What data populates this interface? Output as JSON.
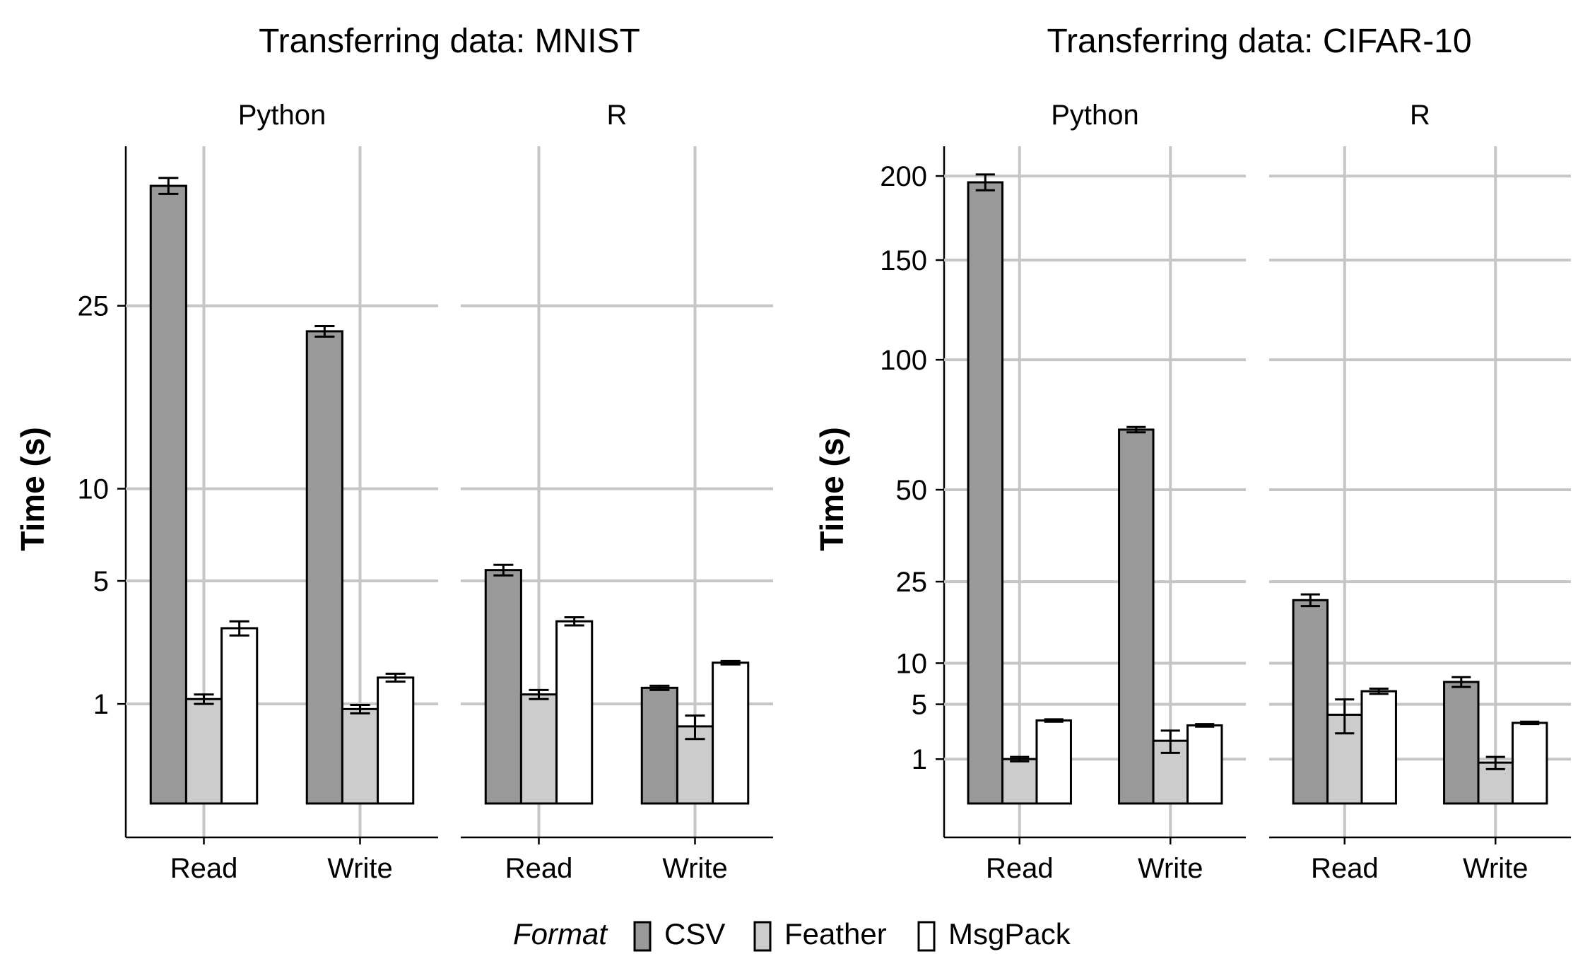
{
  "chart_data": [
    {
      "type": "bar",
      "title": "Transferring data: MNIST",
      "ylabel": "Time (s)",
      "y_scale": "sqrt",
      "ylim": [
        0,
        40
      ],
      "y_ticks": [
        1,
        5,
        10,
        25
      ],
      "categories": [
        "Read",
        "Write"
      ],
      "facets": [
        {
          "name": "Python",
          "series": [
            {
              "name": "CSV",
              "values": [
                38.5,
                22.5
              ],
              "errors": [
                1.0,
                0.5
              ]
            },
            {
              "name": "Feather",
              "values": [
                1.1,
                0.9
              ],
              "errors": [
                0.1,
                0.08
              ]
            },
            {
              "name": "MsgPack",
              "values": [
                3.1,
                1.6
              ],
              "errors": [
                0.25,
                0.1
              ]
            }
          ]
        },
        {
          "name": "R",
          "series": [
            {
              "name": "CSV",
              "values": [
                5.5,
                1.35
              ],
              "errors": [
                0.25,
                0.05
              ]
            },
            {
              "name": "Feather",
              "values": [
                1.2,
                0.6
              ],
              "errors": [
                0.1,
                0.18
              ]
            },
            {
              "name": "MsgPack",
              "values": [
                3.35,
                2.0
              ],
              "errors": [
                0.15,
                0.05
              ]
            }
          ]
        }
      ]
    },
    {
      "type": "bar",
      "title": "Transferring data: CIFAR-10",
      "ylabel": "Time (s)",
      "y_scale": "sqrt",
      "ylim": [
        0,
        220
      ],
      "y_ticks": [
        1,
        5,
        10,
        25,
        50,
        100,
        150,
        200
      ],
      "categories": [
        "Read",
        "Write"
      ],
      "facets": [
        {
          "name": "Python",
          "series": [
            {
              "name": "CSV",
              "values": [
                196,
                71
              ],
              "errors": [
                5,
                1
              ]
            },
            {
              "name": "Feather",
              "values": [
                1.0,
                2.0
              ],
              "errors": [
                0.1,
                0.7
              ]
            },
            {
              "name": "MsgPack",
              "values": [
                3.5,
                3.1
              ],
              "errors": [
                0.1,
                0.1
              ]
            }
          ]
        },
        {
          "name": "R",
          "series": [
            {
              "name": "CSV",
              "values": [
                21,
                7.5
              ],
              "errors": [
                1.2,
                0.6
              ]
            },
            {
              "name": "Feather",
              "values": [
                4.0,
                0.85
              ],
              "errors": [
                1.5,
                0.25
              ]
            },
            {
              "name": "MsgPack",
              "values": [
                6.4,
                3.3
              ],
              "errors": [
                0.3,
                0.1
              ]
            }
          ]
        }
      ]
    }
  ],
  "legend": {
    "title": "Format",
    "items": [
      {
        "label": "CSV",
        "color": "#999999"
      },
      {
        "label": "Feather",
        "color": "#cccccc"
      },
      {
        "label": "MsgPack",
        "color": "#ffffff"
      }
    ]
  }
}
